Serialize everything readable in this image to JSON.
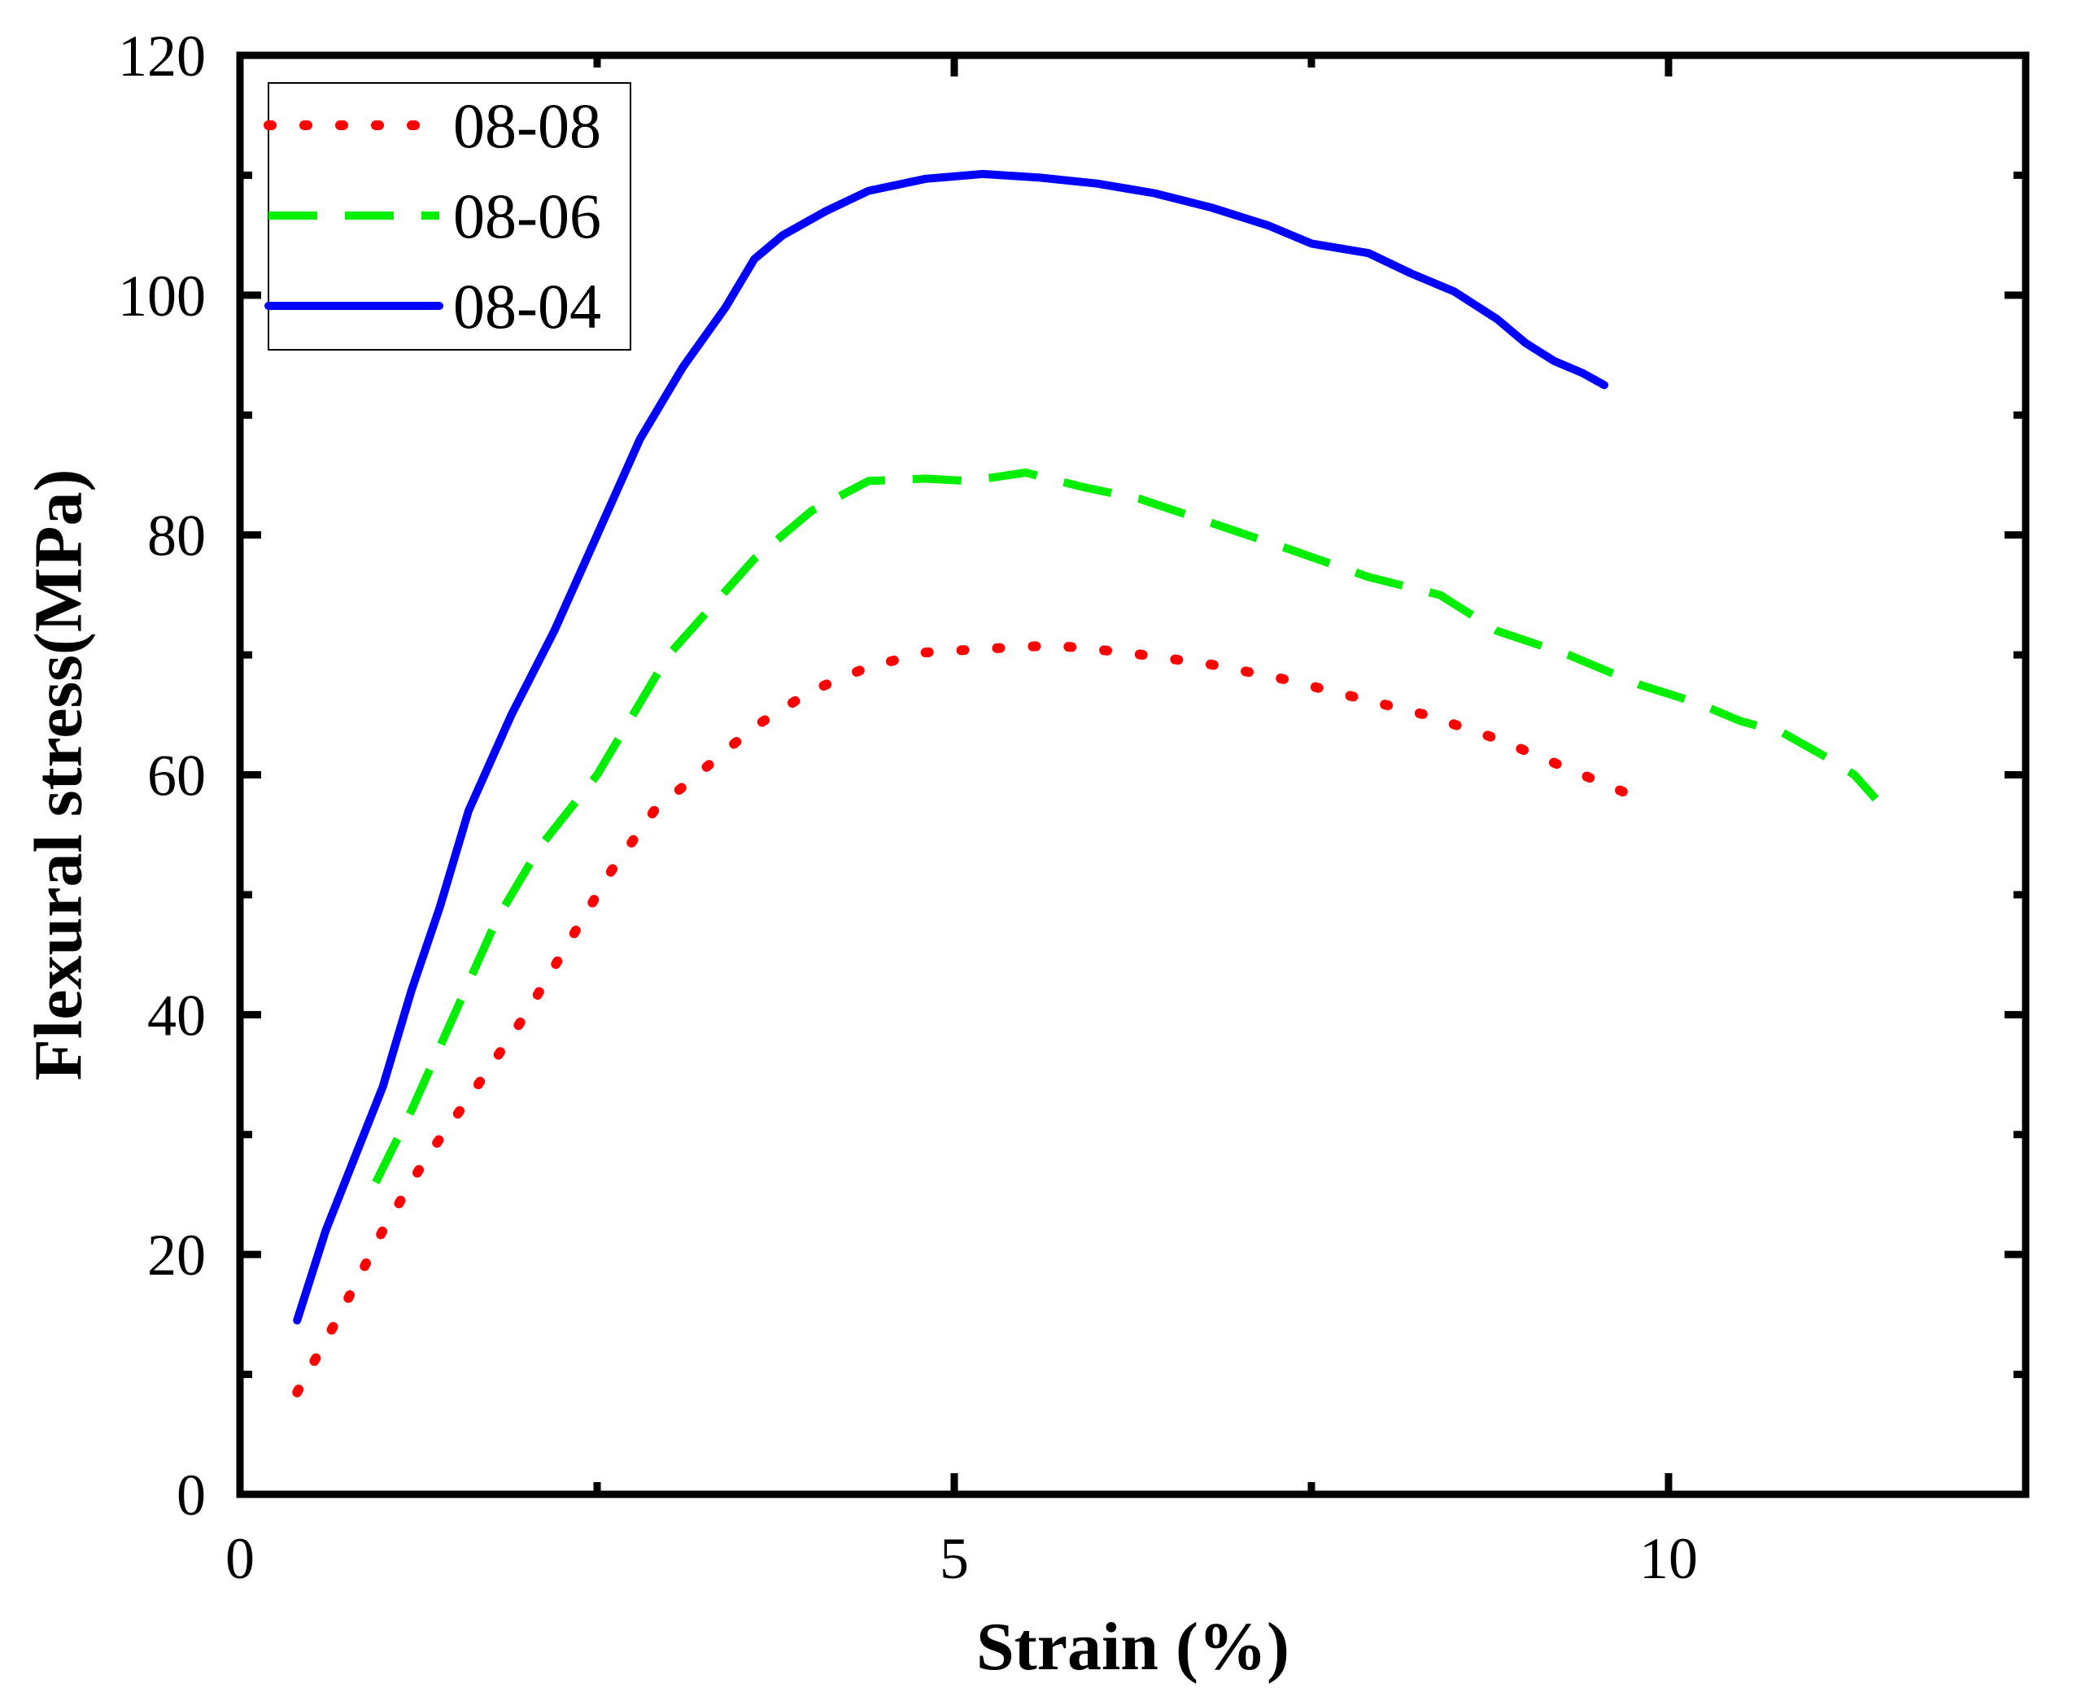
{
  "chart_data": {
    "type": "line",
    "title": "",
    "xlabel": "Strain (%)",
    "ylabel": "Flexural stress(MPa)",
    "xlim": [
      0,
      12.5
    ],
    "ylim": [
      0,
      120
    ],
    "x_ticks": [
      0,
      5,
      10
    ],
    "x_minor_ticks": [
      2.5,
      7.5,
      12.5
    ],
    "y_ticks": [
      0,
      20,
      40,
      60,
      80,
      100,
      120
    ],
    "y_minor_ticks": [
      10,
      30,
      50,
      70,
      90,
      110
    ],
    "grid": false,
    "legend_position": "top-left",
    "series": [
      {
        "name": "08-08",
        "color": "#ff0000",
        "style": "dotted",
        "points": [
          [
            0.4,
            8.5
          ],
          [
            0.7,
            15
          ],
          [
            1.0,
            22
          ],
          [
            1.3,
            28
          ],
          [
            1.6,
            33
          ],
          [
            2.0,
            40
          ],
          [
            2.3,
            46
          ],
          [
            2.6,
            52
          ],
          [
            2.9,
            57
          ],
          [
            3.3,
            61
          ],
          [
            3.6,
            64
          ],
          [
            4.0,
            67
          ],
          [
            4.4,
            69
          ],
          [
            4.8,
            70.2
          ],
          [
            5.2,
            70.5
          ],
          [
            5.7,
            70.8
          ],
          [
            6.2,
            70.2
          ],
          [
            6.8,
            69.2
          ],
          [
            7.3,
            68
          ],
          [
            7.8,
            66.5
          ],
          [
            8.3,
            65
          ],
          [
            8.8,
            63
          ],
          [
            9.2,
            61
          ],
          [
            9.5,
            59.5
          ],
          [
            9.7,
            58.5
          ]
        ]
      },
      {
        "name": "08-06",
        "color": "#00ee00",
        "style": "dashed",
        "points": [
          [
            0.95,
            26
          ],
          [
            1.2,
            32
          ],
          [
            1.5,
            40
          ],
          [
            1.8,
            48
          ],
          [
            2.1,
            54
          ],
          [
            2.5,
            60
          ],
          [
            2.8,
            66
          ],
          [
            3.0,
            70
          ],
          [
            3.3,
            74
          ],
          [
            3.6,
            78
          ],
          [
            4.0,
            82
          ],
          [
            4.4,
            84.5
          ],
          [
            4.8,
            84.7
          ],
          [
            5.1,
            84.5
          ],
          [
            5.5,
            85.2
          ],
          [
            5.9,
            84
          ],
          [
            6.3,
            83
          ],
          [
            6.8,
            81
          ],
          [
            7.3,
            79
          ],
          [
            7.9,
            76.5
          ],
          [
            8.4,
            75
          ],
          [
            8.8,
            72
          ],
          [
            9.3,
            70
          ],
          [
            9.8,
            67.5
          ],
          [
            10.2,
            66
          ],
          [
            10.5,
            64.5
          ],
          [
            10.8,
            63.5
          ],
          [
            11.1,
            61.5
          ],
          [
            11.3,
            60
          ],
          [
            11.45,
            58
          ]
        ]
      },
      {
        "name": "08-04",
        "color": "#0000ff",
        "style": "solid",
        "points": [
          [
            0.4,
            14.5
          ],
          [
            0.6,
            22
          ],
          [
            0.8,
            28
          ],
          [
            1.0,
            34
          ],
          [
            1.2,
            42
          ],
          [
            1.4,
            49
          ],
          [
            1.6,
            57
          ],
          [
            1.9,
            65
          ],
          [
            2.2,
            72
          ],
          [
            2.5,
            80
          ],
          [
            2.8,
            88
          ],
          [
            3.1,
            94
          ],
          [
            3.4,
            99
          ],
          [
            3.6,
            103
          ],
          [
            3.8,
            105
          ],
          [
            4.1,
            107
          ],
          [
            4.4,
            108.7
          ],
          [
            4.8,
            109.7
          ],
          [
            5.2,
            110.1
          ],
          [
            5.6,
            109.8
          ],
          [
            6.0,
            109.3
          ],
          [
            6.4,
            108.5
          ],
          [
            6.8,
            107.3
          ],
          [
            7.2,
            105.8
          ],
          [
            7.5,
            104.3
          ],
          [
            7.9,
            103.5
          ],
          [
            8.2,
            101.8
          ],
          [
            8.5,
            100.3
          ],
          [
            8.8,
            98
          ],
          [
            9.0,
            96
          ],
          [
            9.2,
            94.5
          ],
          [
            9.4,
            93.5
          ],
          [
            9.55,
            92.5
          ]
        ]
      }
    ]
  }
}
